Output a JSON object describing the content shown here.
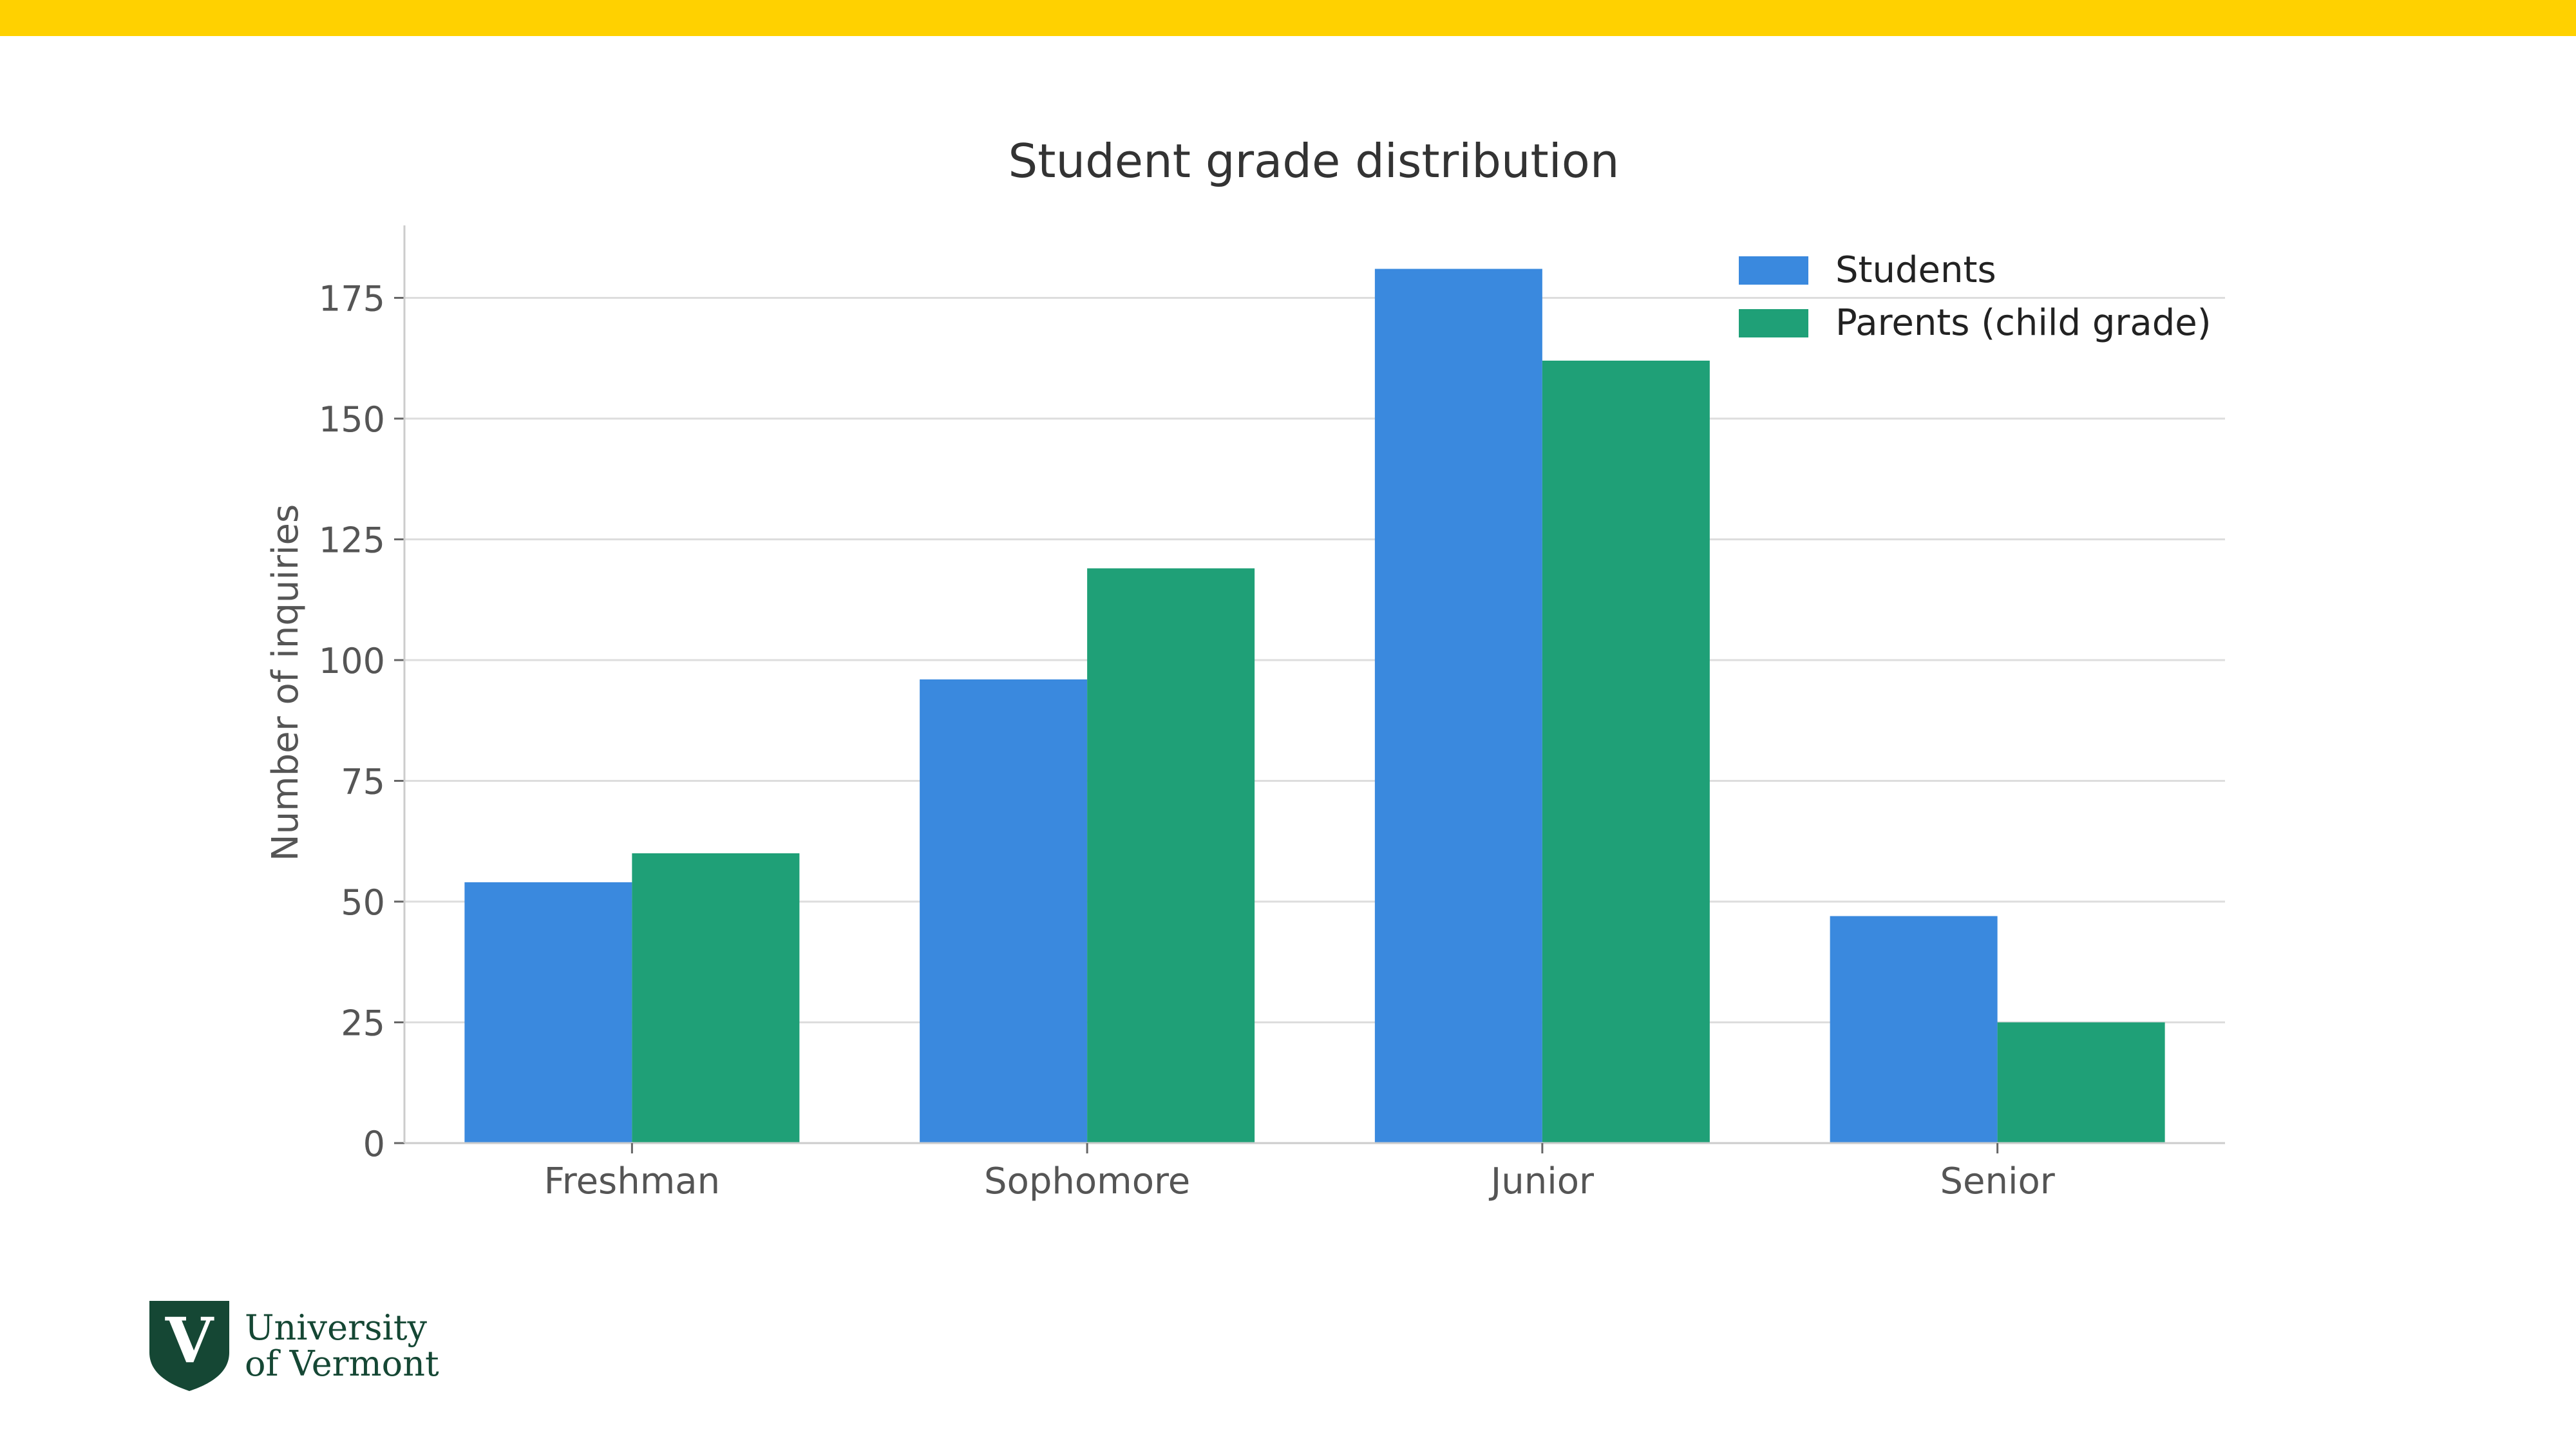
{
  "slide": {
    "accent_color": "#FFD100"
  },
  "logo": {
    "shield_letter": "V",
    "line1": "University",
    "line2": "of Vermont",
    "color": "#154734"
  },
  "chart_data": {
    "type": "bar",
    "title": "Student grade distribution",
    "xlabel": "",
    "ylabel": "Number of inquiries",
    "categories": [
      "Freshman",
      "Sophomore",
      "Junior",
      "Senior"
    ],
    "series": [
      {
        "name": "Students",
        "values": [
          54,
          96,
          181,
          47
        ],
        "color": "#3A89DE"
      },
      {
        "name": "Parents (child grade)",
        "values": [
          60,
          119,
          162,
          25
        ],
        "color": "#1FA077"
      }
    ],
    "ylim": [
      0,
      190
    ],
    "yticks": [
      0,
      25,
      50,
      75,
      100,
      125,
      150,
      175
    ],
    "grid": "y",
    "legend_position": "top-right"
  }
}
